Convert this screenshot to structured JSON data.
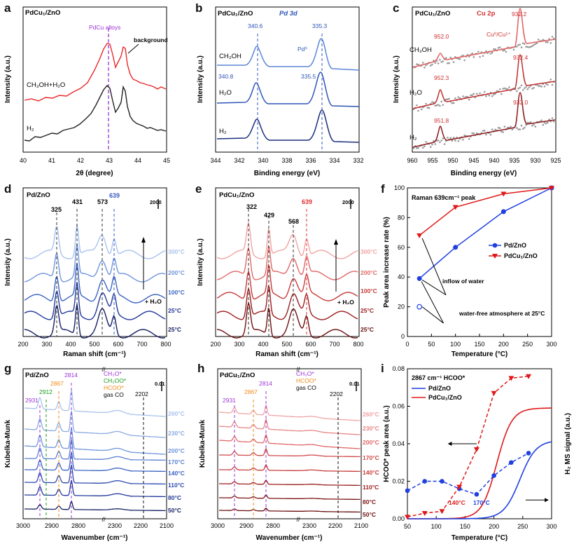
{
  "panels": {
    "a": {
      "letter": "a",
      "sample": "PdCu₁/ZnO",
      "marker": "PdCu alloys",
      "background_label": "background",
      "traces": [
        "CH₃OH+H₂O",
        "H₂"
      ],
      "ylabel": "Intensity (a.u.)",
      "xlabel": "2θ (degree)",
      "ticks": [
        "40",
        "41",
        "42",
        "43",
        "44",
        "45"
      ],
      "colors": {
        "top": "#e8282a",
        "bottom": "#222222",
        "marker": "#9b33d4"
      }
    },
    "b": {
      "letter": "b",
      "sample": "PdCu₁/ZnO",
      "region": "Pd 3d",
      "metal_label": "Pd⁰",
      "peaks_top": [
        "340.6",
        "335.3"
      ],
      "peaks_mid": [
        "340.8",
        "335.5"
      ],
      "traces": [
        "CH₃OH",
        "H₂O",
        "H₂"
      ],
      "ylabel": "Intensity (a.u.)",
      "xlabel": "Binding energy (eV)",
      "ticks": [
        "344",
        "342",
        "340",
        "338",
        "336",
        "334",
        "332"
      ],
      "colors": {
        "top": "#5b86d8",
        "mid": "#2f55b8",
        "bot": "#1b2e7e"
      }
    },
    "c": {
      "letter": "c",
      "sample": "PdCu₁/ZnO",
      "region": "Cu 2p",
      "metal_label": "Cu⁰/Cu¹⁺",
      "peaks": {
        "top": [
          "952.0",
          "932.2"
        ],
        "mid": [
          "952.3",
          "932.4"
        ],
        "bot": [
          "951.8",
          "932.0"
        ]
      },
      "traces": [
        "CH₃OH",
        "H₂O",
        "H₂"
      ],
      "ylabel": "Intensity (a.u.)",
      "xlabel": "Binding energy (eV)",
      "ticks": [
        "960",
        "955",
        "950",
        "945",
        "940",
        "935",
        "930",
        "925"
      ],
      "colors": {
        "top": "#e06060",
        "mid": "#c03030",
        "bot": "#8b1a1a",
        "dots": "#999999"
      }
    },
    "d": {
      "letter": "d",
      "sample": "Pd/ZnO",
      "peaks": [
        "325",
        "431",
        "573",
        "639"
      ],
      "scale": "2000",
      "water": "+ H₂O",
      "temps": [
        "300°C",
        "200°C",
        "100°C",
        "25°C",
        "25°C"
      ],
      "ylabel": "Intensity (a.u.)",
      "xlabel": "Raman shift (cm⁻¹)",
      "ticks": [
        "200",
        "300",
        "400",
        "500",
        "600",
        "700",
        "800"
      ],
      "colors": [
        "#a9c3ee",
        "#6f95dc",
        "#3b63c4",
        "#22389a",
        "#141f62"
      ],
      "highlight": "#3a5cc4"
    },
    "e": {
      "letter": "e",
      "sample": "PdCu₁/ZnO",
      "peaks": [
        "322",
        "429",
        "568",
        "639"
      ],
      "scale": "2000",
      "water": "+ H₂O",
      "temps": [
        "300°C",
        "200°C",
        "100°C",
        "25°C",
        "25°C"
      ],
      "ylabel": "Intensity (a.u.)",
      "xlabel": "Raman shift (cm⁻¹)",
      "ticks": [
        "200",
        "300",
        "400",
        "500",
        "600",
        "700",
        "800"
      ],
      "colors": [
        "#f2a3a3",
        "#e06767",
        "#c83a3a",
        "#9c1d1d",
        "#6b0f0f"
      ],
      "highlight": "#e03030"
    },
    "g": {
      "letter": "g",
      "sample": "Pd/ZnO",
      "peaks": [
        "2931",
        "2912",
        "2867",
        "2814",
        "2202"
      ],
      "legend": [
        "CH₃O*",
        "CH₂OO*",
        "HCOO*",
        "gas CO"
      ],
      "scale": "0.01",
      "temps": [
        "260°C",
        "230°C",
        "200°C",
        "170°C",
        "140°C",
        "110°C",
        "80°C",
        "50°C"
      ],
      "ylabel": "Kubelka-Munk",
      "xlabel": "Wavenumber (cm⁻¹)",
      "ticks": [
        "3000",
        "2900",
        "2800",
        "2300",
        "2200",
        "2100"
      ]
    },
    "h": {
      "letter": "h",
      "sample": "PdCu₁/ZnO",
      "peaks": [
        "2931",
        "2867",
        "2814",
        "2202"
      ],
      "legend": [
        "CH₃O*",
        "HCOO*",
        "gas CO"
      ],
      "scale": "0.01",
      "temps": [
        "260°C",
        "230°C",
        "200°C",
        "170°C",
        "140°C",
        "110°C",
        "80°C",
        "50°C"
      ],
      "ylabel": "Kubelka-Munk",
      "xlabel": "Wavenumber (cm⁻¹)",
      "ticks": [
        "3000",
        "2900",
        "2800",
        "2300",
        "2200",
        "2100"
      ]
    }
  },
  "chart_data": [
    {
      "panel": "f",
      "type": "line",
      "title": "Raman 639cm⁻¹ peak",
      "xlabel": "Temperature (°C)",
      "ylabel": "Peak area increase rate (%)",
      "xlim": [
        0,
        300
      ],
      "ylim": [
        0,
        100
      ],
      "xticks": [
        "0",
        "50",
        "100",
        "150",
        "200",
        "250",
        "300"
      ],
      "yticks": [
        "0",
        "20",
        "40",
        "60",
        "80",
        "100"
      ],
      "series": [
        {
          "name": "Pd/ZnO",
          "color": "#1f3fe0",
          "marker": "circle",
          "x": [
            25,
            100,
            200,
            300
          ],
          "y": [
            39,
            60,
            84,
            100
          ]
        },
        {
          "name": "PdCu₁/ZnO",
          "color": "#e01818",
          "marker": "triangle",
          "x": [
            25,
            100,
            200,
            300
          ],
          "y": [
            68,
            87,
            96,
            100
          ]
        }
      ],
      "extra_points": [
        {
          "x": 25,
          "y": 20,
          "label": "water-free atmosphere at 25°C"
        }
      ],
      "annotations": [
        "inflow of water",
        "water-free atmosphere at 25°C"
      ]
    },
    {
      "panel": "i",
      "type": "line",
      "title": "2867 cm⁻¹ HCOO*",
      "xlabel": "Temperature (°C)",
      "ylabel": "HCOO* peak area (a.u.)",
      "y2label": "H₂ MS signal (a.u.)",
      "xlim": [
        50,
        300
      ],
      "ylim": [
        0,
        0.08
      ],
      "xticks": [
        "50",
        "100",
        "150",
        "200",
        "250",
        "300"
      ],
      "yticks": [
        "0.00",
        "0.02",
        "0.04",
        "0.06",
        "0.08"
      ],
      "series": [
        {
          "name": "Pd/ZnO",
          "color": "#1f3fe0",
          "marker": "circle",
          "style": "dashed",
          "x": [
            50,
            80,
            110,
            140,
            170,
            200,
            230,
            260
          ],
          "y": [
            0.015,
            0.02,
            0.02,
            0.016,
            0.013,
            0.023,
            0.03,
            0.035
          ]
        },
        {
          "name": "PdCu₁/ZnO",
          "color": "#e01818",
          "marker": "triangle",
          "style": "dashed",
          "x": [
            50,
            80,
            110,
            140,
            170,
            200,
            230,
            260
          ],
          "y": [
            0.001,
            0.003,
            0.004,
            0.017,
            0.037,
            0.067,
            0.075,
            0.076
          ]
        }
      ],
      "onsets": [
        "140°C",
        "170°C"
      ]
    }
  ]
}
